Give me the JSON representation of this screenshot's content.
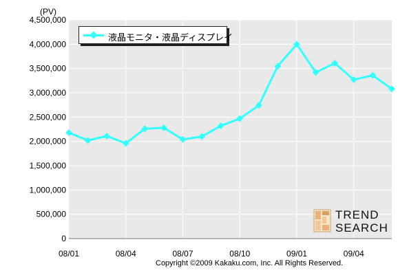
{
  "chart_data": {
    "type": "line",
    "title": "",
    "unit_label": "(PV)",
    "xlabel": "",
    "ylabel": "",
    "ylim": [
      0,
      4500000
    ],
    "yticks": [
      0,
      500000,
      1000000,
      1500000,
      2000000,
      2500000,
      3000000,
      3500000,
      4000000,
      4500000
    ],
    "ytick_labels": [
      "0",
      "500,000",
      "1,000,000",
      "1,500,000",
      "2,000,000",
      "2,500,000",
      "3,000,000",
      "3,500,000",
      "4,000,000",
      "4,500,000"
    ],
    "x": [
      "08/01",
      "08/02",
      "08/03",
      "08/04",
      "08/05",
      "08/06",
      "08/07",
      "08/08",
      "08/09",
      "08/10",
      "08/11",
      "08/12",
      "09/01",
      "09/02",
      "09/03",
      "09/04",
      "09/05",
      "09/06"
    ],
    "xtick_labels": [
      "08/01",
      "08/04",
      "08/07",
      "08/10",
      "09/01",
      "09/04"
    ],
    "xtick_indices": [
      0,
      3,
      6,
      9,
      12,
      15
    ],
    "grid": true,
    "legend_position": "top-left",
    "series": [
      {
        "name": "液晶モニタ・液晶ディスプレイ",
        "color": "#33ffff",
        "values": [
          2180000,
          2020000,
          2110000,
          1960000,
          2260000,
          2280000,
          2040000,
          2100000,
          2320000,
          2470000,
          2740000,
          3550000,
          4000000,
          3420000,
          3610000,
          3270000,
          3360000,
          3080000
        ]
      }
    ]
  },
  "footer": {
    "copyright": "Copyright ©2009 Kakaku.com, Inc. All Rights Reserved."
  },
  "logo": {
    "line1": "TREND",
    "line2": "SEARCH",
    "icon": "trend-search-logo-icon"
  }
}
